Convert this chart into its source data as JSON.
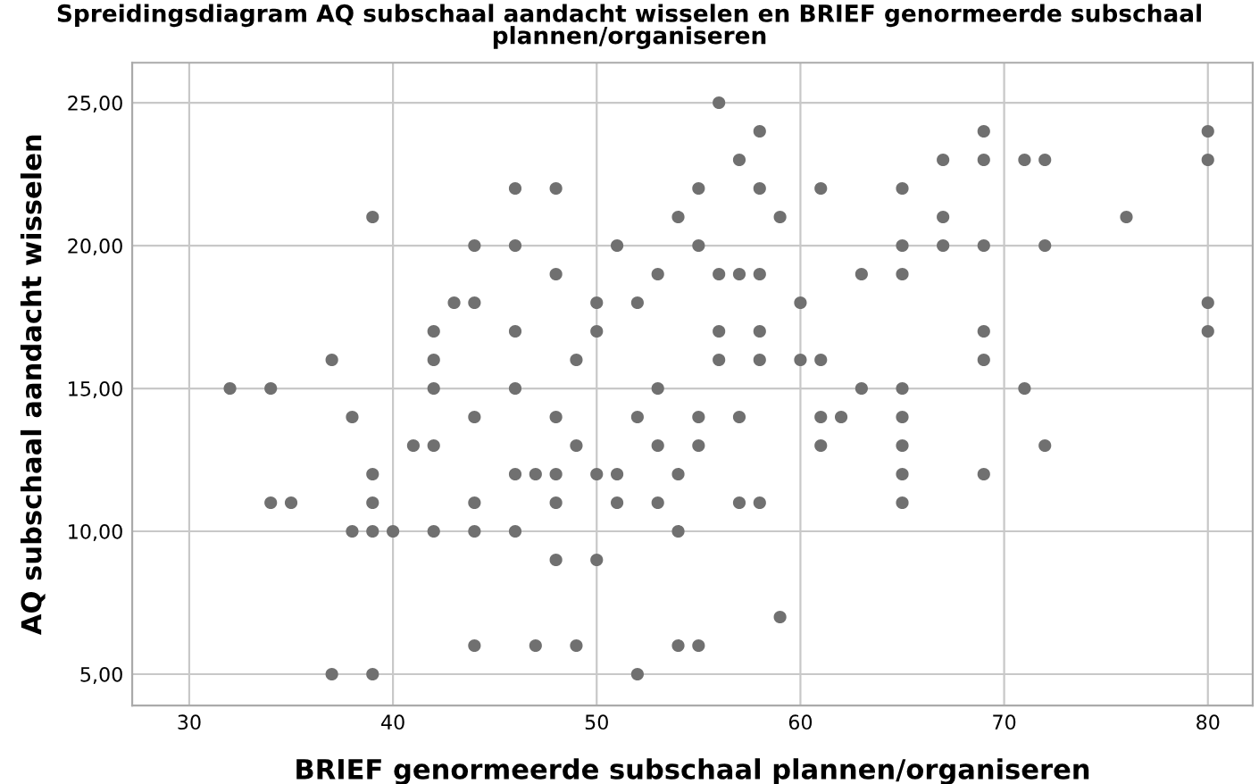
{
  "chart_data": {
    "type": "scatter",
    "title": "Spreidingsdiagram AQ subschaal aandacht wisselen en BRIEF genormeerde subschaal\nplannen/organiseren",
    "xlabel": "BRIEF genormeerde subschaal plannen/organiseren",
    "ylabel": "AQ subschaal aandacht wisselen",
    "series": [
      {
        "color": "#707070",
        "x": [
          32,
          34,
          34,
          35,
          37,
          37,
          38,
          38,
          39,
          39,
          39,
          39,
          39,
          40,
          41,
          42,
          42,
          42,
          42,
          42,
          43,
          44,
          44,
          44,
          44,
          44,
          44,
          46,
          46,
          46,
          46,
          46,
          46,
          47,
          47,
          48,
          48,
          48,
          48,
          48,
          48,
          49,
          49,
          49,
          50,
          50,
          50,
          50,
          51,
          51,
          51,
          52,
          52,
          52,
          53,
          53,
          53,
          53,
          54,
          54,
          54,
          54,
          55,
          55,
          55,
          55,
          55,
          56,
          56,
          56,
          56,
          57,
          57,
          57,
          57,
          58,
          58,
          58,
          58,
          58,
          58,
          59,
          59,
          60,
          60,
          61,
          61,
          61,
          61,
          62,
          63,
          63,
          65,
          65,
          65,
          65,
          65,
          65,
          65,
          65,
          67,
          67,
          67,
          69,
          69,
          69,
          69,
          69,
          69,
          71,
          71,
          72,
          72,
          72,
          76,
          80,
          80,
          80,
          80
        ],
        "values": [
          15,
          15,
          11,
          11,
          16,
          5,
          14,
          10,
          21,
          12,
          11,
          10,
          5,
          10,
          13,
          17,
          16,
          15,
          13,
          10,
          18,
          20,
          18,
          14,
          11,
          10,
          6,
          22,
          20,
          17,
          15,
          12,
          10,
          12,
          6,
          22,
          19,
          14,
          12,
          11,
          9,
          16,
          13,
          6,
          18,
          17,
          12,
          9,
          20,
          12,
          11,
          18,
          14,
          5,
          19,
          15,
          13,
          11,
          21,
          12,
          10,
          6,
          22,
          20,
          14,
          13,
          6,
          25,
          19,
          17,
          16,
          23,
          19,
          14,
          11,
          24,
          22,
          19,
          17,
          16,
          11,
          21,
          7,
          18,
          16,
          22,
          16,
          14,
          13,
          14,
          19,
          15,
          22,
          20,
          19,
          15,
          14,
          13,
          12,
          11,
          23,
          21,
          20,
          24,
          23,
          20,
          17,
          16,
          12,
          23,
          15,
          23,
          20,
          13,
          21,
          24,
          23,
          18,
          17
        ]
      }
    ],
    "xlim": [
      27.2,
      82.2
    ],
    "ylim": [
      3.9,
      26.4
    ],
    "xticks": [
      30,
      40,
      50,
      60,
      70,
      80
    ],
    "yticks": [
      {
        "value": 5,
        "label": "5,00"
      },
      {
        "value": 10,
        "label": "10,00"
      },
      {
        "value": 15,
        "label": "15,00"
      },
      {
        "value": 20,
        "label": "20,00"
      },
      {
        "value": 25,
        "label": "25,00"
      }
    ],
    "grid": true,
    "marker": "circle"
  }
}
